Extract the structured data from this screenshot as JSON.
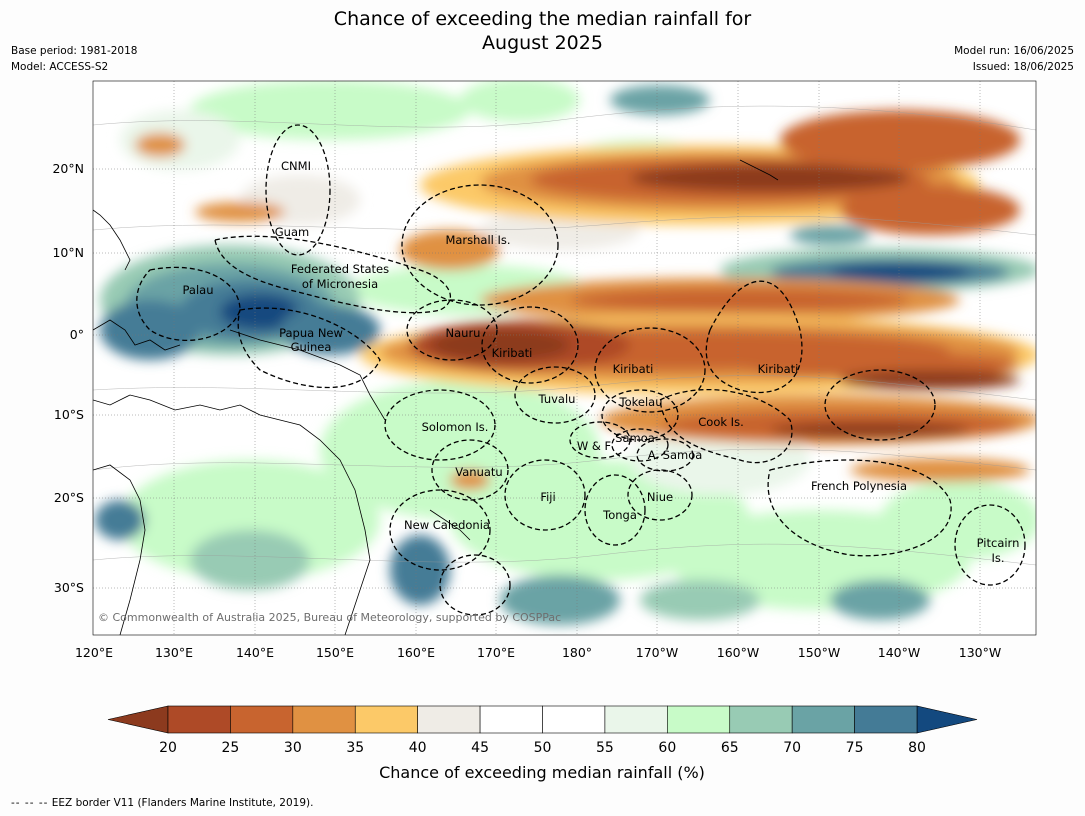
{
  "header": {
    "title_line1": "Chance of exceeding the median rainfall for",
    "title_line2": "August 2025",
    "base_period": "Base period: 1981-2018",
    "model": "Model: ACCESS-S2",
    "model_run": "Model run: 16/06/2025",
    "issued": "Issued: 18/06/2025"
  },
  "map": {
    "lon_ticks": [
      "120°E",
      "130°E",
      "140°E",
      "150°E",
      "160°E",
      "170°E",
      "180°",
      "170°W",
      "160°W",
      "150°W",
      "140°W",
      "130°W"
    ],
    "lat_ticks": [
      "20°N",
      "10°N",
      "0°",
      "10°S",
      "20°S",
      "30°S"
    ],
    "regions": [
      {
        "name": "CNMI"
      },
      {
        "name": "Guam"
      },
      {
        "name": "Marshall Is."
      },
      {
        "name": "Federated States"
      },
      {
        "name": "of Micronesia"
      },
      {
        "name": "Palau"
      },
      {
        "name": "Papua New"
      },
      {
        "name": "Guinea"
      },
      {
        "name": "Nauru"
      },
      {
        "name": "Kiribati"
      },
      {
        "name": "Kiribati"
      },
      {
        "name": "Kiribati"
      },
      {
        "name": "Tuvalu"
      },
      {
        "name": "Tokelau"
      },
      {
        "name": "Cook Is."
      },
      {
        "name": "Solomon Is."
      },
      {
        "name": "Samoa"
      },
      {
        "name": "W & F"
      },
      {
        "name": "A. Samoa"
      },
      {
        "name": "Vanuatu"
      },
      {
        "name": "Fiji"
      },
      {
        "name": "Niue"
      },
      {
        "name": "Tonga"
      },
      {
        "name": "French Polynesia"
      },
      {
        "name": "New Caledonia"
      },
      {
        "name": "Pitcairn"
      },
      {
        "name": "Is."
      }
    ],
    "copyright": "© Commonwealth of Australia 2025, Bureau of Meteorology, supported by COSPPac"
  },
  "colorbar": {
    "ticks": [
      "20",
      "25",
      "30",
      "35",
      "40",
      "45",
      "50",
      "55",
      "60",
      "65",
      "70",
      "75",
      "80"
    ],
    "colors": [
      "#ae4a27",
      "#c8642f",
      "#e09142",
      "#fcc968",
      "#efece6",
      "#ffffff",
      "#ffffff",
      "#eaf6ea",
      "#c8fbc8",
      "#98cbb4",
      "#6aa3a5",
      "#447b96"
    ],
    "under_color": "#8c3a1e",
    "over_color": "#13497f",
    "label": "Chance of exceeding median rainfall (%)"
  },
  "footer": {
    "dashes": "--  --  --",
    "text": "EEZ border V11 (Flanders Marine Institute, 2019)."
  }
}
